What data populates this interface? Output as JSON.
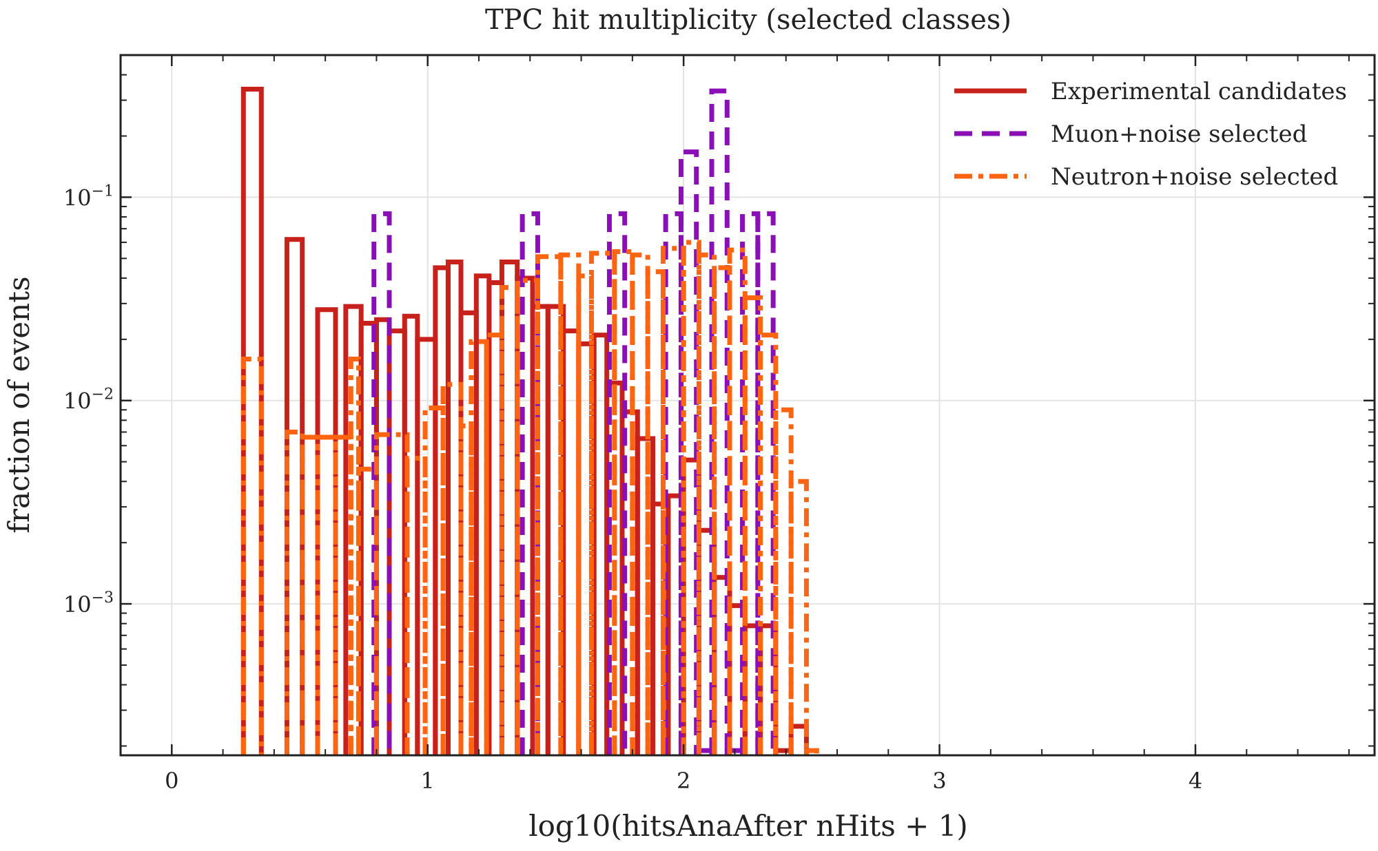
{
  "chart_data": {
    "type": "step-histogram",
    "title": "TPC hit multiplicity (selected classes)",
    "xlabel": "log10(hitsAnaAfter nHits + 1)",
    "ylabel": "fraction of events",
    "xlim": [
      -0.2,
      4.7
    ],
    "ylim": [
      0.00018,
      0.5
    ],
    "yscale": "log",
    "grid": true,
    "legend_position": "top-right",
    "x_ticks": [
      {
        "value": 0,
        "label": "0"
      },
      {
        "value": 1,
        "label": "1"
      },
      {
        "value": 2,
        "label": "2"
      },
      {
        "value": 3,
        "label": "3"
      },
      {
        "value": 4,
        "label": "4"
      }
    ],
    "y_ticks": [
      {
        "value": 0.1,
        "base": "10",
        "exp": "−1"
      },
      {
        "value": 0.01,
        "base": "10",
        "exp": "−2"
      },
      {
        "value": 0.001,
        "base": "10",
        "exp": "−3"
      }
    ],
    "series": [
      {
        "name": "Experimental candidates",
        "color": "#c8201a",
        "style": "solid",
        "bins": [
          [
            0.28,
            0.35,
            0.34
          ],
          [
            0.45,
            0.51,
            0.062
          ],
          [
            0.57,
            0.64,
            0.028
          ],
          [
            0.68,
            0.74,
            0.029
          ],
          [
            0.74,
            0.8,
            0.024
          ],
          [
            0.8,
            0.85,
            0.025
          ],
          [
            0.85,
            0.91,
            0.022
          ],
          [
            0.91,
            0.96,
            0.026
          ],
          [
            0.96,
            1.03,
            0.02
          ],
          [
            1.03,
            1.08,
            0.045
          ],
          [
            1.08,
            1.13,
            0.048
          ],
          [
            1.13,
            1.19,
            0.027
          ],
          [
            1.19,
            1.24,
            0.041
          ],
          [
            1.24,
            1.29,
            0.038
          ],
          [
            1.29,
            1.35,
            0.048
          ],
          [
            1.35,
            1.41,
            0.04
          ],
          [
            1.41,
            1.47,
            0.029
          ],
          [
            1.47,
            1.53,
            0.029
          ],
          [
            1.53,
            1.59,
            0.022
          ],
          [
            1.59,
            1.65,
            0.019
          ],
          [
            1.65,
            1.7,
            0.021
          ],
          [
            1.7,
            1.76,
            0.0122
          ],
          [
            1.76,
            1.82,
            0.0088
          ],
          [
            1.82,
            1.88,
            0.0065
          ],
          [
            1.88,
            1.94,
            0.0031
          ],
          [
            1.94,
            2.0,
            0.0034
          ],
          [
            2.0,
            2.06,
            0.0051
          ],
          [
            2.06,
            2.12,
            0.0023
          ],
          [
            2.12,
            2.18,
            0.00135
          ],
          [
            2.18,
            2.24,
            0.00098
          ],
          [
            2.24,
            2.3,
            0.00078
          ],
          [
            2.3,
            2.36,
            0.00078
          ],
          [
            2.36,
            2.42,
            0.00019
          ],
          [
            2.42,
            2.48,
            0.00025
          ]
        ]
      },
      {
        "name": "Muon+noise selected",
        "color": "#8a0fb5",
        "style": "dashed",
        "bins": [
          [
            0.79,
            0.85,
            0.083
          ],
          [
            1.37,
            1.43,
            0.083
          ],
          [
            1.71,
            1.77,
            0.083
          ],
          [
            1.93,
            1.99,
            0.083
          ],
          [
            1.99,
            2.05,
            0.167
          ],
          [
            2.05,
            2.11,
            0.00019
          ],
          [
            2.11,
            2.17,
            0.333
          ],
          [
            2.17,
            2.23,
            0.00019
          ],
          [
            2.23,
            2.29,
            0.083
          ],
          [
            2.29,
            2.35,
            0.083
          ]
        ]
      },
      {
        "name": "Neutron+noise selected",
        "color": "#ff6410",
        "style": "dashdot",
        "bins": [
          [
            0.28,
            0.35,
            0.016
          ],
          [
            0.45,
            0.51,
            0.007
          ],
          [
            0.51,
            0.57,
            0.0066
          ],
          [
            0.57,
            0.64,
            0.0066
          ],
          [
            0.64,
            0.7,
            0.0066
          ],
          [
            0.7,
            0.73,
            0.016
          ],
          [
            0.73,
            0.8,
            0.0046
          ],
          [
            0.8,
            0.92,
            0.0068
          ],
          [
            0.92,
            0.99,
            0.0052
          ],
          [
            0.99,
            1.06,
            0.0092
          ],
          [
            1.06,
            1.13,
            0.012
          ],
          [
            1.13,
            1.17,
            0.0075
          ],
          [
            1.17,
            1.23,
            0.0195
          ],
          [
            1.23,
            1.29,
            0.021
          ],
          [
            1.29,
            1.35,
            0.036
          ],
          [
            1.35,
            1.43,
            0.039
          ],
          [
            1.43,
            1.52,
            0.051
          ],
          [
            1.52,
            1.59,
            0.052
          ],
          [
            1.59,
            1.64,
            0.041
          ],
          [
            1.64,
            1.73,
            0.053
          ],
          [
            1.73,
            1.8,
            0.054
          ],
          [
            1.8,
            1.86,
            0.052
          ],
          [
            1.86,
            1.92,
            0.043
          ],
          [
            1.92,
            2.0,
            0.056
          ],
          [
            2.0,
            2.06,
            0.06
          ],
          [
            2.06,
            2.12,
            0.052
          ],
          [
            2.12,
            2.18,
            0.045
          ],
          [
            2.18,
            2.24,
            0.055
          ],
          [
            2.24,
            2.3,
            0.032
          ],
          [
            2.3,
            2.36,
            0.021
          ],
          [
            2.36,
            2.42,
            0.009
          ],
          [
            2.42,
            2.48,
            0.004
          ],
          [
            2.48,
            2.52,
            0.00019
          ]
        ]
      }
    ]
  }
}
